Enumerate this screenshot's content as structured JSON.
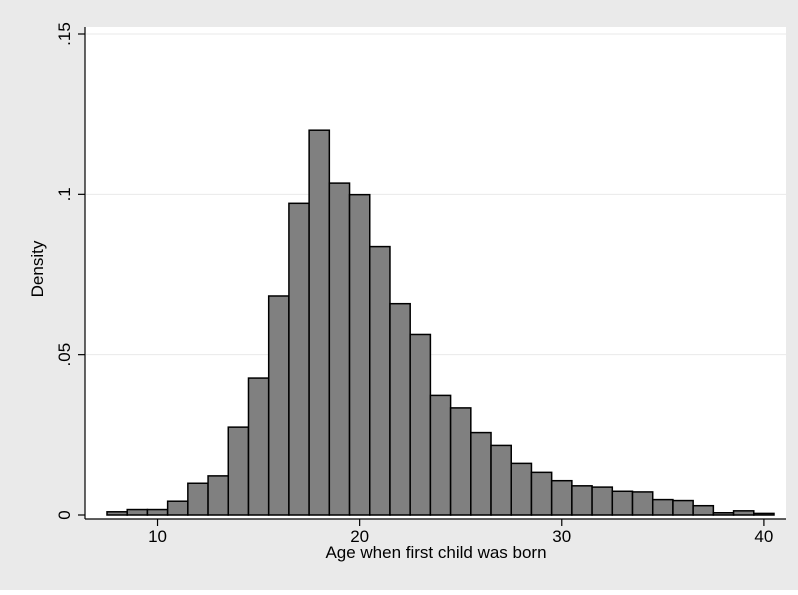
{
  "chart_data": {
    "type": "bar",
    "title": "",
    "xlabel": "Age when first child was born",
    "ylabel": "Density",
    "xlim": [
      7.5,
      40.5
    ],
    "ylim": [
      0,
      0.15
    ],
    "x_ticks": [
      10,
      20,
      30,
      40
    ],
    "x_tick_labels": [
      "10",
      "20",
      "30",
      "40"
    ],
    "y_ticks": [
      0,
      0.05,
      0.1,
      0.15
    ],
    "y_tick_labels": [
      "0",
      ".05",
      ".1",
      ".15"
    ],
    "grid": "horizontal",
    "legend": "none",
    "bin_edges": [
      7.5,
      8.5,
      9.5,
      10.5,
      11.5,
      12.5,
      13.5,
      14.5,
      15.5,
      16.5,
      17.5,
      18.5,
      19.5,
      20.5,
      21.5,
      22.5,
      23.5,
      24.5,
      25.5,
      26.5,
      27.5,
      28.5,
      29.5,
      30.5,
      31.5,
      32.5,
      33.5,
      34.5,
      35.5,
      36.5,
      37.5,
      38.5,
      39.5,
      40.5
    ],
    "values": [
      0.001,
      0.0017,
      0.0017,
      0.0043,
      0.0099,
      0.0122,
      0.0274,
      0.0427,
      0.0683,
      0.0972,
      0.12,
      0.1035,
      0.0999,
      0.0837,
      0.0659,
      0.0563,
      0.0373,
      0.0334,
      0.0257,
      0.0217,
      0.0161,
      0.0133,
      0.0107,
      0.0091,
      0.0087,
      0.0074,
      0.0072,
      0.0048,
      0.0045,
      0.0029,
      0.0007,
      0.0013,
      0.0005
    ],
    "colors": {
      "bar_fill": "#808080",
      "bar_stroke": "#000000",
      "plot_background": "#ffffff",
      "outer_background": "#eaeaea",
      "gridline": "#eaeaea"
    }
  }
}
